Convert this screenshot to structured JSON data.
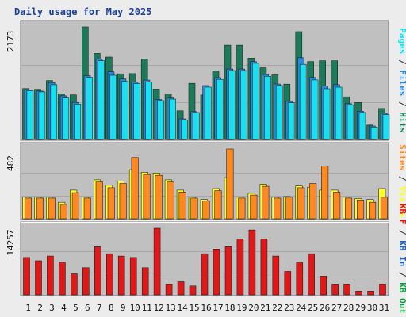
{
  "chart_data": {
    "type": "bar",
    "title": "Daily usage for May 2025",
    "colors": {
      "background": "#ececec",
      "panel": "#c0c0c0",
      "hits": "#1a7a5a",
      "files": "#2888e0",
      "pages": "#18e0f0",
      "visits": "#ffff28",
      "sites": "#ff8820",
      "kb_in": "#2060c0",
      "kb_out": "#10a040",
      "kbf": "#e01818",
      "title": "#1c3f9b",
      "weekend_tick": "#1a8a50"
    },
    "x_categories": [
      "1",
      "2",
      "3",
      "4",
      "5",
      "6",
      "7",
      "8",
      "9",
      "10",
      "11",
      "12",
      "13",
      "14",
      "15",
      "16",
      "17",
      "18",
      "19",
      "20",
      "21",
      "22",
      "23",
      "24",
      "25",
      "26",
      "27",
      "28",
      "29",
      "30",
      "31"
    ],
    "weekend_days": [
      "3",
      "4",
      "10",
      "11",
      "17",
      "18",
      "24",
      "25",
      "31"
    ],
    "panels": [
      {
        "id": "hits-files-pages",
        "ymax_label": "2173",
        "ylim": [
          0,
          2173
        ],
        "side_label": [
          {
            "text": "Pages",
            "color": "#18e0f0"
          },
          {
            "text": " / ",
            "color": "#333333"
          },
          {
            "text": "Files",
            "color": "#2888e0"
          },
          {
            "text": " / ",
            "color": "#333333"
          },
          {
            "text": "Hits",
            "color": "#1a7a5a"
          }
        ],
        "series": [
          {
            "name": "Hits",
            "color": "#1a7a5a",
            "values": [
              983,
              968,
              1137,
              882,
              861,
              2173,
              1662,
              1592,
              1267,
              1271,
              1551,
              974,
              879,
              554,
              1084,
              859,
              1324,
              1820,
              1820,
              1570,
              1383,
              1247,
              1068,
              2081,
              1504,
              1519,
              1520,
              823,
              714,
              279,
              599
            ]
          },
          {
            "name": "Files",
            "color": "#2888e0",
            "values": [
              960,
              935,
              1098,
              843,
              716,
              1230,
              1557,
              1305,
              1167,
              1111,
              1146,
              772,
              801,
              398,
              539,
              1040,
              1193,
              1361,
              1361,
              1502,
              1254,
              1069,
              735,
              1578,
              1197,
              1031,
              1057,
              691,
              547,
              260,
              505
            ]
          },
          {
            "name": "Pages",
            "color": "#18e0f0",
            "values": [
              941,
              920,
              1058,
              800,
              683,
              1200,
              1520,
              1240,
              1120,
              1080,
              1110,
              750,
              780,
              380,
              520,
              1010,
              1160,
              1330,
              1330,
              1470,
              1220,
              1040,
              710,
              1450,
              1150,
              980,
              1010,
              670,
              520,
              240,
              480
            ]
          }
        ]
      },
      {
        "id": "visits-sites",
        "ymax_label": "482",
        "ylim": [
          0,
          482
        ],
        "side_label": [
          {
            "text": "Sites",
            "color": "#ff8820"
          },
          {
            "text": " / ",
            "color": "#333333"
          },
          {
            "text": "Visits",
            "color": "#ffff28"
          }
        ],
        "series": [
          {
            "name": "Visits",
            "color": "#ffff28",
            "values": [
              149,
              149,
              149,
              114,
              198,
              149,
              269,
              231,
              259,
              339,
              321,
              315,
              269,
              198,
              149,
              133,
              208,
              284,
              149,
              176,
              237,
              149,
              154,
              226,
              218,
              198,
              198,
              149,
              139,
              133,
              208
            ]
          },
          {
            "name": "Sites",
            "color": "#ff8820",
            "values": [
              143,
              143,
              143,
              99,
              180,
              143,
              254,
              214,
              244,
              423,
              306,
              300,
              254,
              184,
              143,
              124,
              194,
              482,
              143,
              164,
              224,
              143,
              149,
              214,
              243,
              363,
              184,
              143,
              129,
              114,
              149
            ]
          }
        ]
      },
      {
        "id": "kbytes",
        "ymax_label": "14257",
        "ylim": [
          0,
          14257
        ],
        "side_label": [
          {
            "text": "KB F",
            "color": "#e01818"
          },
          {
            "text": " / ",
            "color": "#333333"
          },
          {
            "text": "KB In",
            "color": "#2060c0"
          },
          {
            "text": " / ",
            "color": "#333333"
          },
          {
            "text": "KB Out",
            "color": "#10a040"
          }
        ],
        "series": [
          {
            "name": "KB F",
            "color": "#e01818",
            "values": [
              8000,
              7300,
              8300,
              7000,
              4500,
              5800,
              10300,
              8800,
              8300,
              8000,
              5800,
              14257,
              2300,
              2800,
              1900,
              8800,
              9800,
              10300,
              12000,
              13900,
              12000,
              8300,
              5000,
              7000,
              8800,
              4000,
              2300,
              2300,
              800,
              800,
              2300
            ]
          }
        ]
      }
    ]
  }
}
